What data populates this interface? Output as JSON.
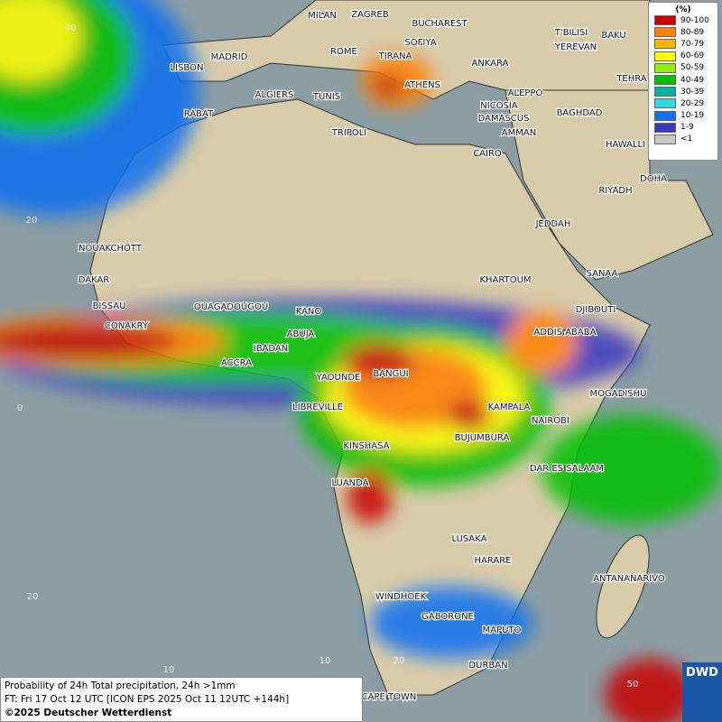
{
  "map": {
    "cities": [
      "MILAN",
      "ZAGREB",
      "BUCHAREST",
      "SOFIYA",
      "ROME",
      "TIRANA",
      "T'BILISI",
      "BAKU",
      "YEREVAN",
      "MADRID",
      "LISBON",
      "ANKARA",
      "ATHENS",
      "TEHRA",
      "ALGIERS",
      "TUNIS",
      "ALEPPO",
      "NICOSIA",
      "BAGHDAD",
      "RABAT",
      "DAMASCUS",
      "AMMAN",
      "TRIPOLI",
      "HAWALLI",
      "CAIRO",
      "DOHA",
      "RIYADH",
      "JEDDAH",
      "NOUAKCHOTT",
      "SANAA",
      "DAKAR",
      "KHARTOUM",
      "BISSAU",
      "OUAGADOUGOU",
      "DJIBOUTI",
      "KANO",
      "CONAKRY",
      "ABUJA",
      "ADDIS ABABA",
      "IBADAN",
      "ACCRA",
      "YAOUNDE",
      "BANGUI",
      "MOGADISHU",
      "LIBREVILLE",
      "KAMPALA",
      "NAIROBI",
      "BUJUMBURA",
      "KINSHASA",
      "DAR ES SALAAM",
      "LUANDA",
      "LUSAKA",
      "HARARE",
      "ANTANANARIVO",
      "WINDHOEK",
      "GABORONE",
      "MAPUTO",
      "DURBAN",
      "CAPE TOWN"
    ],
    "grid_labels": [
      "40",
      "20",
      "0",
      "20",
      "10",
      "10",
      "20",
      "50"
    ]
  },
  "legend": {
    "unit": "(%)",
    "entries": [
      {
        "label": "90-100",
        "color": "#c80000"
      },
      {
        "label": "80-89",
        "color": "#ff8000"
      },
      {
        "label": "70-79",
        "color": "#ffb400"
      },
      {
        "label": "60-69",
        "color": "#ffff00"
      },
      {
        "label": "50-59",
        "color": "#90f000"
      },
      {
        "label": "40-49",
        "color": "#00c000"
      },
      {
        "label": "30-39",
        "color": "#00b4a0"
      },
      {
        "label": "20-29",
        "color": "#30d8e0"
      },
      {
        "label": "10-19",
        "color": "#1070f0"
      },
      {
        "label": "1-9",
        "color": "#3838c0"
      },
      {
        "label": "<1",
        "color": "#c8c8c8"
      }
    ]
  },
  "caption": {
    "line1": "Probability of 24h Total precipitation, 24h >1mm",
    "line2": "FT: Fri 17 Oct 12 UTC [ICON EPS 2025 Oct 11 12UTC +144h]",
    "line3": "©2025 Deutscher Wetterdienst"
  },
  "logo": "DWD"
}
